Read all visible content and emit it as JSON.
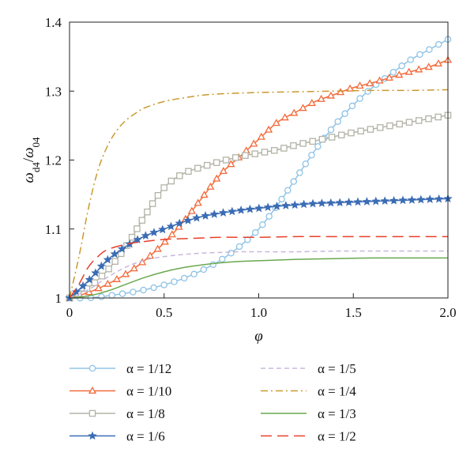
{
  "chart_data": {
    "type": "line",
    "title": "",
    "xlabel": "φ",
    "ylabel": "ω_d4/ω_04",
    "xlim": [
      0,
      2.0
    ],
    "ylim": [
      1.0,
      1.4
    ],
    "xticks": [
      "0",
      "0.5",
      "1.0",
      "1.5",
      "2.0"
    ],
    "yticks": [
      "1",
      "1.1",
      "1.2",
      "1.3",
      "1.4"
    ],
    "grid": false,
    "legend_position": "bottom",
    "series": [
      {
        "name": "α = 1/12",
        "color": "#8fc3e6",
        "dash": "solid",
        "marker": "circle",
        "x": [
          0,
          0.1,
          0.2,
          0.3,
          0.4,
          0.5,
          0.6,
          0.7,
          0.8,
          0.9,
          1.0,
          1.1,
          1.2,
          1.3,
          1.4,
          1.5,
          1.6,
          1.7,
          1.8,
          1.9,
          2.0
        ],
        "y": [
          1.0,
          1.0,
          1.003,
          1.007,
          1.012,
          1.019,
          1.028,
          1.04,
          1.055,
          1.075,
          1.1,
          1.135,
          1.175,
          1.215,
          1.25,
          1.28,
          1.305,
          1.325,
          1.345,
          1.36,
          1.375
        ]
      },
      {
        "name": "α = 1/10",
        "color": "#f36a3a",
        "dash": "solid",
        "marker": "triangle",
        "x": [
          0,
          0.1,
          0.2,
          0.3,
          0.4,
          0.5,
          0.6,
          0.7,
          0.8,
          0.9,
          1.0,
          1.1,
          1.2,
          1.3,
          1.4,
          1.5,
          1.6,
          1.7,
          1.8,
          1.9,
          2.0
        ],
        "y": [
          1.0,
          1.008,
          1.02,
          1.035,
          1.055,
          1.08,
          1.11,
          1.145,
          1.18,
          1.205,
          1.23,
          1.255,
          1.27,
          1.285,
          1.295,
          1.305,
          1.312,
          1.32,
          1.328,
          1.335,
          1.345
        ]
      },
      {
        "name": "α = 1/8",
        "color": "#b3b3a7",
        "dash": "solid",
        "marker": "square",
        "x": [
          0,
          0.1,
          0.2,
          0.3,
          0.4,
          0.5,
          0.6,
          0.7,
          0.8,
          0.9,
          1.0,
          1.1,
          1.2,
          1.3,
          1.4,
          1.5,
          1.6,
          1.7,
          1.8,
          1.9,
          2.0
        ],
        "y": [
          1.0,
          1.015,
          1.04,
          1.075,
          1.12,
          1.16,
          1.18,
          1.19,
          1.198,
          1.205,
          1.21,
          1.215,
          1.222,
          1.228,
          1.234,
          1.24,
          1.245,
          1.25,
          1.255,
          1.26,
          1.265
        ]
      },
      {
        "name": "α = 1/6",
        "color": "#3b6cb4",
        "dash": "solid",
        "marker": "star",
        "x": [
          0,
          0.1,
          0.2,
          0.3,
          0.4,
          0.5,
          0.6,
          0.7,
          0.8,
          0.9,
          1.0,
          1.1,
          1.2,
          1.3,
          1.4,
          1.5,
          1.6,
          1.7,
          1.8,
          1.9,
          2.0
        ],
        "y": [
          1.0,
          1.025,
          1.055,
          1.075,
          1.09,
          1.1,
          1.11,
          1.118,
          1.123,
          1.127,
          1.13,
          1.133,
          1.135,
          1.137,
          1.138,
          1.139,
          1.14,
          1.141,
          1.142,
          1.143,
          1.144
        ]
      },
      {
        "name": "α = 1/5",
        "color": "#c7b8dc",
        "dash": "shortdash",
        "marker": "none",
        "x": [
          0,
          0.1,
          0.2,
          0.3,
          0.4,
          0.5,
          0.6,
          0.7,
          0.8,
          0.9,
          1.0,
          1.2,
          1.4,
          1.6,
          1.8,
          2.0
        ],
        "y": [
          1.0,
          1.012,
          1.03,
          1.045,
          1.055,
          1.06,
          1.063,
          1.065,
          1.066,
          1.067,
          1.067,
          1.067,
          1.068,
          1.068,
          1.068,
          1.068
        ]
      },
      {
        "name": "α = 1/4",
        "color": "#c99a2e",
        "dash": "dashdot",
        "marker": "none",
        "x": [
          0,
          0.05,
          0.1,
          0.15,
          0.2,
          0.25,
          0.3,
          0.35,
          0.4,
          0.5,
          0.6,
          0.7,
          0.8,
          1.0,
          1.2,
          1.4,
          1.6,
          1.8,
          2.0
        ],
        "y": [
          1.0,
          1.06,
          1.13,
          1.185,
          1.22,
          1.243,
          1.258,
          1.268,
          1.276,
          1.285,
          1.29,
          1.294,
          1.296,
          1.298,
          1.299,
          1.3,
          1.301,
          1.301,
          1.302
        ]
      },
      {
        "name": "α = 1/3",
        "color": "#6aa84f",
        "dash": "solid",
        "marker": "none",
        "x": [
          0,
          0.1,
          0.2,
          0.3,
          0.4,
          0.5,
          0.6,
          0.7,
          0.8,
          0.9,
          1.0,
          1.2,
          1.4,
          1.6,
          1.8,
          2.0
        ],
        "y": [
          1.0,
          1.003,
          1.01,
          1.02,
          1.03,
          1.038,
          1.044,
          1.048,
          1.051,
          1.053,
          1.054,
          1.056,
          1.057,
          1.058,
          1.058,
          1.058
        ]
      },
      {
        "name": "α = 1/2",
        "color": "#e8402a",
        "dash": "longdash",
        "marker": "none",
        "x": [
          0,
          0.05,
          0.1,
          0.15,
          0.2,
          0.3,
          0.4,
          0.5,
          0.6,
          0.7,
          0.8,
          1.0,
          1.2,
          1.4,
          1.6,
          1.8,
          2.0
        ],
        "y": [
          1.0,
          1.02,
          1.045,
          1.06,
          1.07,
          1.078,
          1.082,
          1.085,
          1.086,
          1.087,
          1.088,
          1.088,
          1.089,
          1.089,
          1.089,
          1.089,
          1.089
        ]
      }
    ]
  }
}
